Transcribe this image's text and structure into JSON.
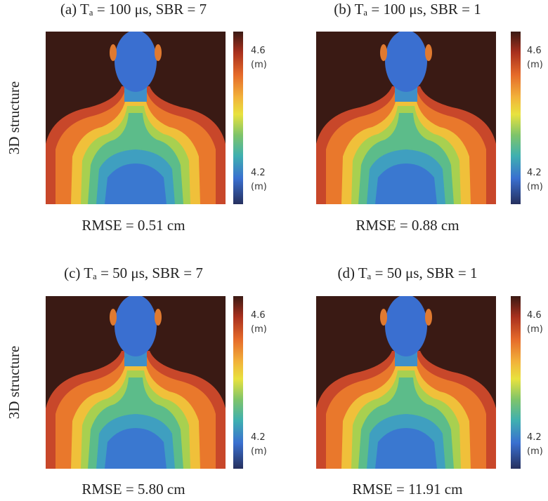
{
  "row_labels": [
    "3D structure",
    "3D structure"
  ],
  "panels": [
    {
      "title": "(a) Tₐ = 100 μs, SBR = 7",
      "caption": "RMSE = 0.51 cm",
      "colorbar": {
        "top": "4.6",
        "top_unit": "(m)",
        "bottom": "4.2",
        "bottom_unit": "(m)"
      }
    },
    {
      "title": "(b) Tₐ = 100 μs, SBR = 1",
      "caption": "RMSE = 0.88 cm",
      "colorbar": {
        "top": "4.6",
        "top_unit": "(m)",
        "bottom": "4.2",
        "bottom_unit": "(m)"
      }
    },
    {
      "title": "(c) Tₐ = 50 μs, SBR = 7",
      "caption": "RMSE = 5.80 cm",
      "colorbar": {
        "top": "4.6",
        "top_unit": "(m)",
        "bottom": "4.2",
        "bottom_unit": "(m)"
      }
    },
    {
      "title": "(d) Tₐ = 50 μs, SBR = 1",
      "caption": "RMSE = 11.91 cm",
      "colorbar": {
        "top": "4.6",
        "top_unit": "(m)",
        "bottom": "4.2",
        "bottom_unit": "(m)"
      }
    }
  ]
}
